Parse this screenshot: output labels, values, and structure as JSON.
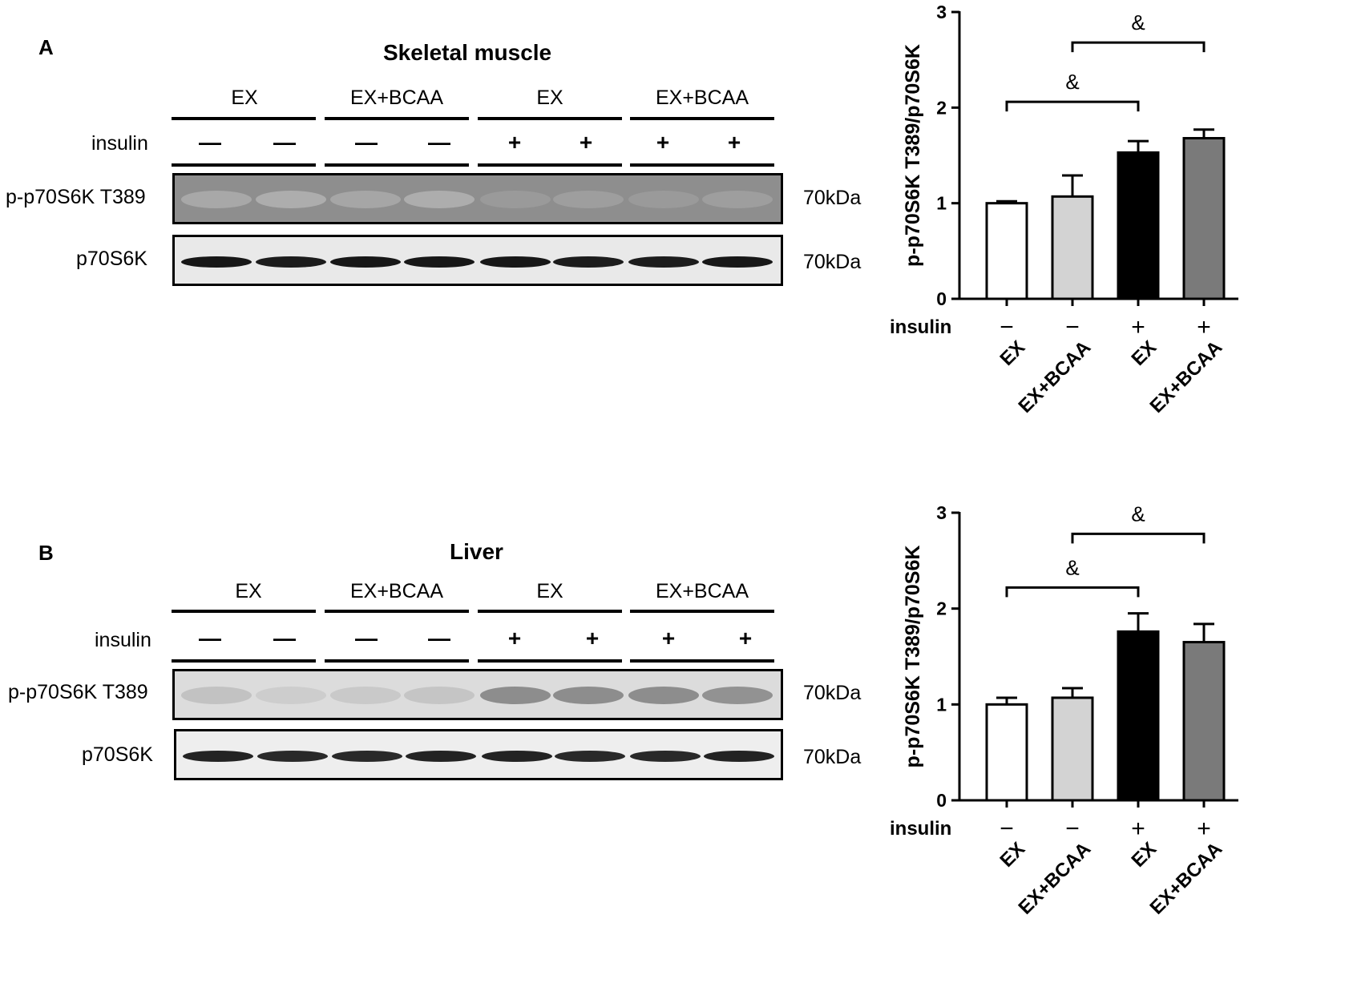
{
  "panels": [
    {
      "letter": "A",
      "tissue": "Skeletal muscle",
      "groups": [
        "EX",
        "EX+BCAA",
        "EX",
        "EX+BCAA"
      ],
      "insulin_label": "insulin",
      "insulin_signs": [
        "—",
        "—",
        "—",
        "—",
        "+",
        "+",
        "+",
        "+"
      ],
      "blots": [
        {
          "label": "p-p70S6K T389",
          "mw": "70kDa",
          "band_intensity": [
            0.25,
            0.22,
            0.26,
            0.22,
            0.32,
            0.3,
            0.32,
            0.3
          ]
        },
        {
          "label": "p70S6K",
          "mw": "70kDa",
          "band_intensity": [
            0.9,
            0.88,
            0.9,
            0.9,
            0.9,
            0.88,
            0.88,
            0.9
          ]
        }
      ]
    },
    {
      "letter": "B",
      "tissue": "Liver",
      "groups": [
        "EX",
        "EX+BCAA",
        "EX",
        "EX+BCAA"
      ],
      "insulin_label": "insulin",
      "insulin_signs": [
        "—",
        "—",
        "—",
        "—",
        "+",
        "+",
        "+",
        "+"
      ],
      "blots": [
        {
          "label": "p-p70S6K T389",
          "mw": "70kDa",
          "band_intensity": [
            0.18,
            0.12,
            0.14,
            0.16,
            0.45,
            0.45,
            0.45,
            0.42
          ]
        },
        {
          "label": "p70S6K",
          "mw": "70kDa",
          "band_intensity": [
            0.85,
            0.82,
            0.82,
            0.85,
            0.85,
            0.82,
            0.82,
            0.85
          ]
        }
      ]
    }
  ],
  "chart_data": [
    {
      "type": "bar",
      "ylabel": "p-p70S6K T389/p70S6K",
      "ylim": [
        0,
        3
      ],
      "yticks": [
        0,
        1,
        2,
        3
      ],
      "categories": [
        "EX",
        "EX+BCAA",
        "EX",
        "EX+BCAA"
      ],
      "insulin_label": "insulin",
      "insulin": [
        "−",
        "−",
        "+",
        "+"
      ],
      "values": [
        1.0,
        1.07,
        1.53,
        1.68
      ],
      "errors": [
        0.02,
        0.22,
        0.12,
        0.09
      ],
      "colors": [
        "#ffffff",
        "#d3d3d3",
        "#000000",
        "#7a7a7a"
      ],
      "significance": [
        {
          "from": 0,
          "to": 2,
          "label": "&",
          "y": 2.06
        },
        {
          "from": 1,
          "to": 3,
          "label": "&",
          "y": 2.68
        }
      ]
    },
    {
      "type": "bar",
      "ylabel": "p-p70S6K T389/p70S6K",
      "ylim": [
        0,
        3
      ],
      "yticks": [
        0,
        1,
        2,
        3
      ],
      "categories": [
        "EX",
        "EX+BCAA",
        "EX",
        "EX+BCAA"
      ],
      "insulin_label": "insulin",
      "insulin": [
        "−",
        "−",
        "+",
        "+"
      ],
      "values": [
        1.0,
        1.07,
        1.76,
        1.65
      ],
      "errors": [
        0.07,
        0.1,
        0.19,
        0.19
      ],
      "colors": [
        "#ffffff",
        "#d3d3d3",
        "#000000",
        "#7a7a7a"
      ],
      "significance": [
        {
          "from": 0,
          "to": 2,
          "label": "&",
          "y": 2.22
        },
        {
          "from": 1,
          "to": 3,
          "label": "&",
          "y": 2.78
        }
      ]
    }
  ]
}
